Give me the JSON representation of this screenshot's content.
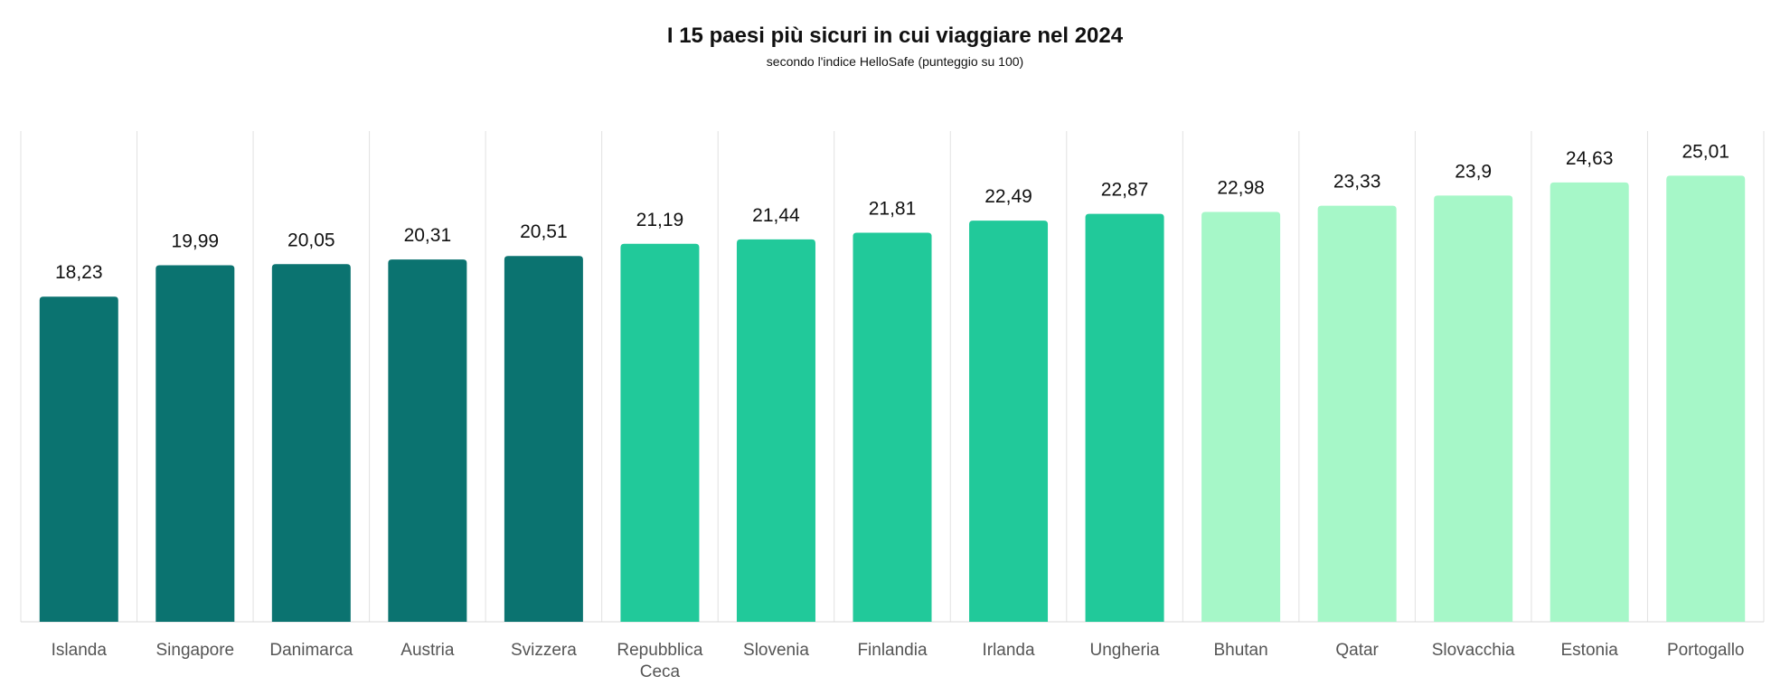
{
  "chart_data": {
    "type": "bar",
    "title": "I 15 paesi più sicuri in cui viaggiare nel 2024",
    "subtitle": "secondo l'indice HelloSafe (punteggio su 100)",
    "xlabel": "",
    "ylabel": "",
    "ylim": [
      0,
      26.5
    ],
    "grid": "vertical separators between categories",
    "legend": "none",
    "categories": [
      "Islanda",
      "Singapore",
      "Danimarca",
      "Austria",
      "Svizzera",
      "Repubblica Ceca",
      "Slovenia",
      "Finlandia",
      "Irlanda",
      "Ungheria",
      "Bhutan",
      "Qatar",
      "Slovacchia",
      "Estonia",
      "Portogallo"
    ],
    "values": [
      18.23,
      19.99,
      20.05,
      20.31,
      20.51,
      21.19,
      21.44,
      21.81,
      22.49,
      22.87,
      22.98,
      23.33,
      23.9,
      24.63,
      25.01
    ],
    "value_labels": [
      "18,23",
      "19,99",
      "20,05",
      "20,31",
      "20,51",
      "21,19",
      "21,44",
      "21,81",
      "22,49",
      "22,87",
      "22,98",
      "23,33",
      "23,9",
      "24,63",
      "25,01"
    ],
    "bar_colors": [
      "#0b7370",
      "#0b7370",
      "#0b7370",
      "#0b7370",
      "#0b7370",
      "#21c99a",
      "#21c99a",
      "#21c99a",
      "#21c99a",
      "#21c99a",
      "#a6f7c8",
      "#a6f7c8",
      "#a6f7c8",
      "#a6f7c8",
      "#a6f7c8"
    ]
  },
  "colors": {
    "dark_teal": "#0b7370",
    "medium_green": "#21c99a",
    "light_mint": "#a6f7c8",
    "grid": "#e2e2e2",
    "text": "#111111",
    "category_text": "#555555"
  }
}
